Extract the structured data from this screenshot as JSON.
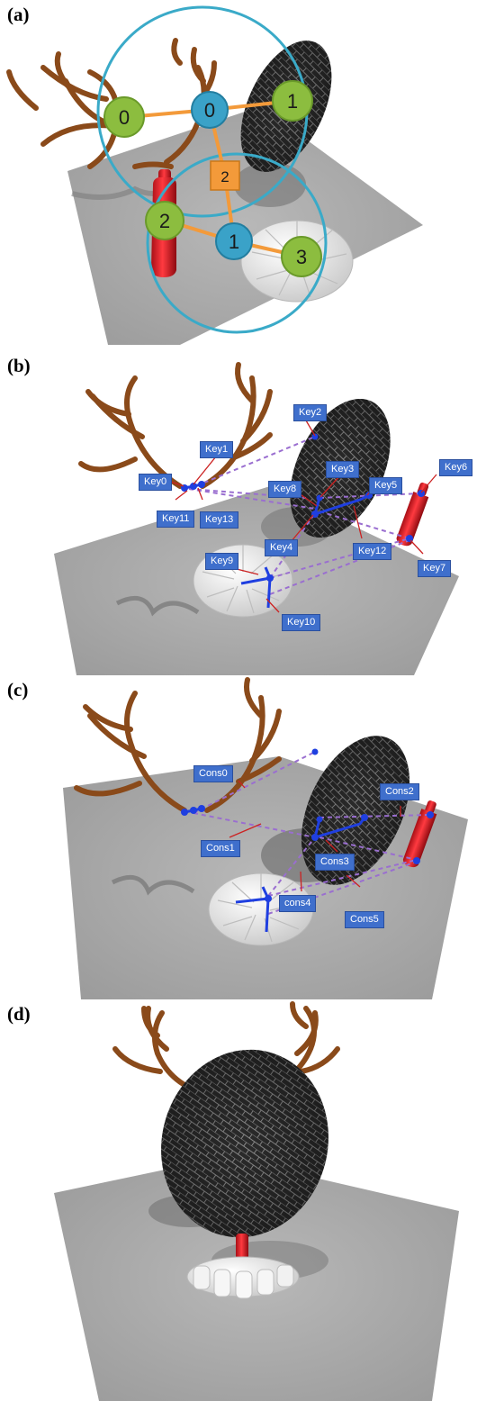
{
  "panels": {
    "a": {
      "letter": "(a)",
      "green_nodes": [
        "0",
        "1",
        "2",
        "3"
      ],
      "blue_nodes": [
        "0",
        "1"
      ],
      "orange_node": "2"
    },
    "b": {
      "letter": "(b)",
      "keys": [
        "Key0",
        "Key1",
        "Key2",
        "Key3",
        "Key4",
        "Key5",
        "Key6",
        "Key7",
        "Key8",
        "Key9",
        "Key10",
        "Key11",
        "Key12",
        "Key13"
      ]
    },
    "c": {
      "letter": "(c)",
      "constraints": [
        "Cons0",
        "Cons1",
        "Cons2",
        "Cons3",
        "cons4",
        "Cons5"
      ]
    },
    "d": {
      "letter": "(d)"
    }
  },
  "colors": {
    "graph_circle": "#3aaac8",
    "green_node": "#8cbd3f",
    "blue_node": "#3aa2c8",
    "orange_node": "#f39a3a",
    "edge": "#f39a3a",
    "key_label_bg": "#3f6fcc",
    "leader_line": "#cc2222",
    "dashed_link": "#9a6ed0",
    "skeleton": "#1f3fe0",
    "ground": "#a9a9a9"
  }
}
